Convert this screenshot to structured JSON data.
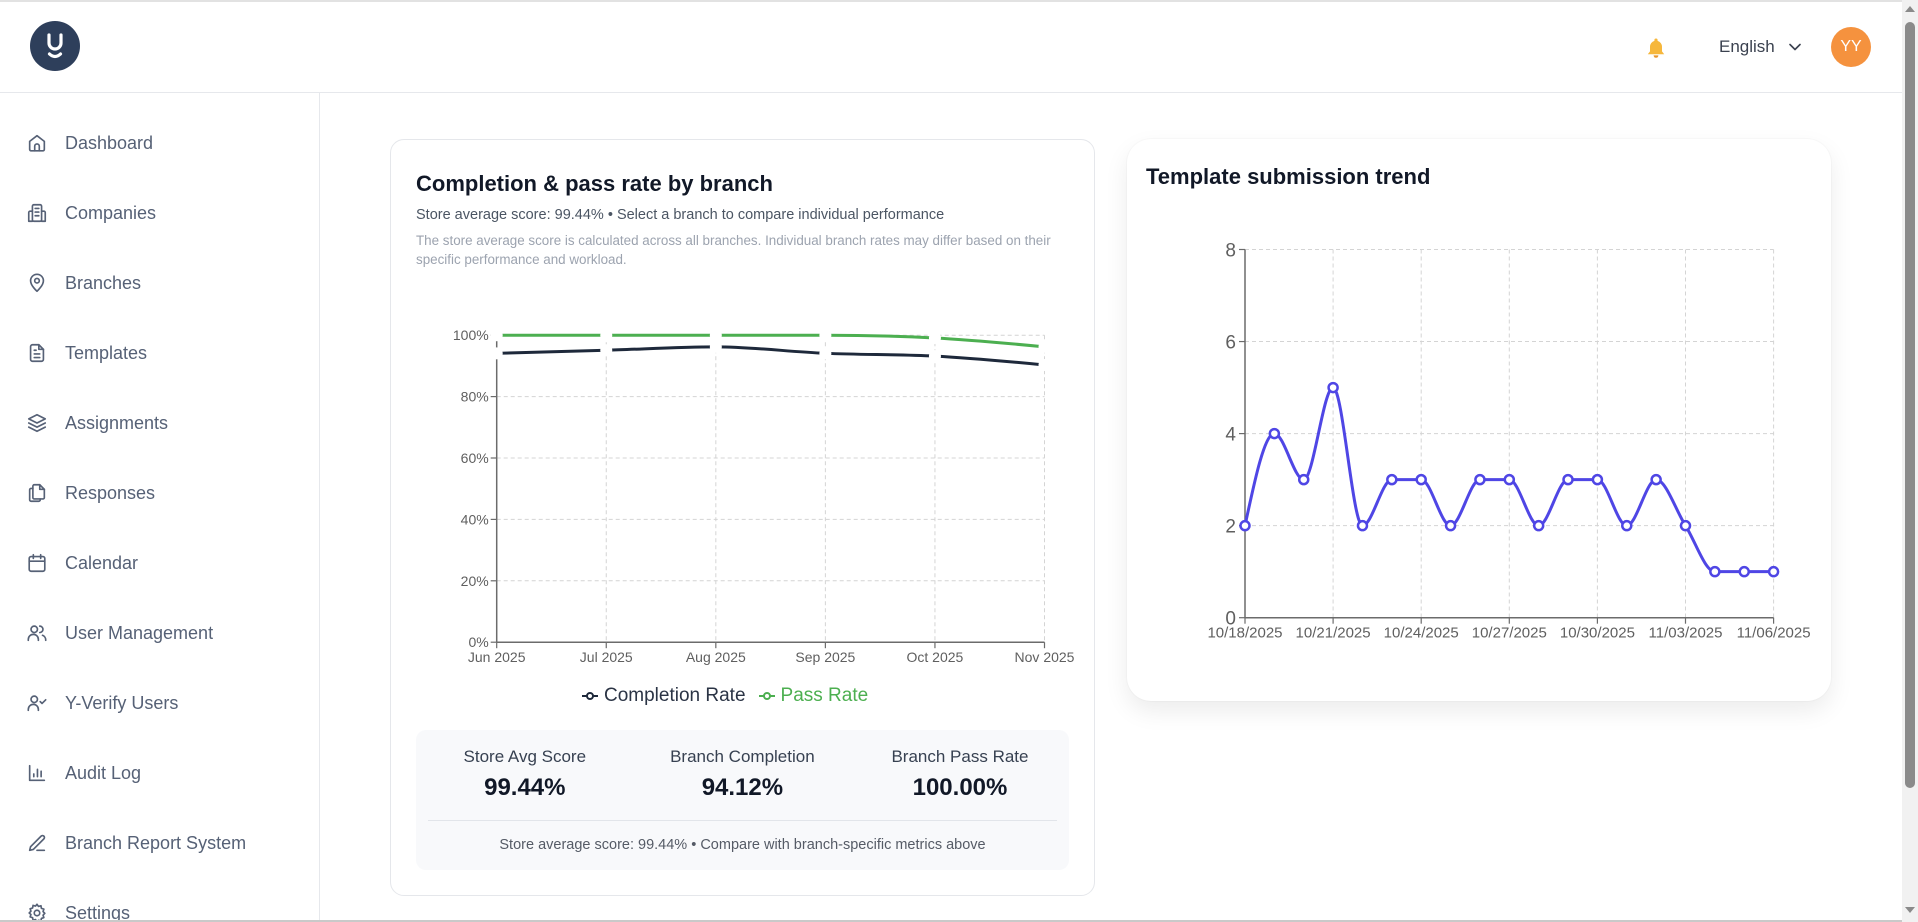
{
  "header": {
    "logo_text": "y",
    "notification_icon": "bell-icon",
    "language": "English",
    "avatar_initials": "YY",
    "avatar_color": "#f5923e"
  },
  "sidebar": {
    "items": [
      {
        "label": "Dashboard",
        "icon": "home-icon"
      },
      {
        "label": "Companies",
        "icon": "building-icon"
      },
      {
        "label": "Branches",
        "icon": "map-pin-icon"
      },
      {
        "label": "Templates",
        "icon": "file-text-icon"
      },
      {
        "label": "Assignments",
        "icon": "layers-icon"
      },
      {
        "label": "Responses",
        "icon": "files-icon"
      },
      {
        "label": "Calendar",
        "icon": "calendar-icon"
      },
      {
        "label": "User Management",
        "icon": "users-icon"
      },
      {
        "label": "Y-Verify Users",
        "icon": "user-check-icon"
      },
      {
        "label": "Audit Log",
        "icon": "bar-chart-icon"
      },
      {
        "label": "Branch Report System",
        "icon": "pen-icon"
      },
      {
        "label": "Settings",
        "icon": "gear-icon"
      }
    ]
  },
  "branch_card": {
    "subtitle": "Store average score: 99.44% • Select a branch to compare individual performance",
    "note": "The store average score is calculated across all branches. Individual branch rates may differ based on their specific performance and workload.",
    "stats": [
      {
        "label": "Store Avg Score",
        "value": "99.44%"
      },
      {
        "label": "Branch Completion",
        "value": "94.12%"
      },
      {
        "label": "Branch Pass Rate",
        "value": "100.00%"
      }
    ],
    "stats_footer": "Store average score: 99.44% • Compare with branch-specific metrics above"
  },
  "chart_data": [
    {
      "type": "line",
      "title": "Completion & pass rate by branch",
      "xlabel": "",
      "ylabel": "",
      "categories": [
        "Jun 2025",
        "Jul 2025",
        "Aug 2025",
        "Sep 2025",
        "Oct 2025",
        "Nov 2025"
      ],
      "series": [
        {
          "name": "Completion Rate",
          "color": "#1e293b",
          "values": [
            94.1,
            95.1,
            96.2,
            94.1,
            93.2,
            90.3
          ]
        },
        {
          "name": "Pass Rate",
          "color": "#4caf50",
          "values": [
            100,
            100,
            100,
            100,
            99.1,
            96.2
          ]
        }
      ],
      "ylim": [
        0,
        100
      ],
      "yticks": [
        {
          "value": 0,
          "label": "0%"
        },
        {
          "value": 20,
          "label": "20%"
        },
        {
          "value": 40,
          "label": "40%"
        },
        {
          "value": 60,
          "label": "60%"
        },
        {
          "value": 80,
          "label": "80%"
        },
        {
          "value": 100,
          "label": "100%"
        }
      ],
      "grid": true,
      "legend": "bottom"
    },
    {
      "type": "line",
      "title": "Template submission trend",
      "xlabel": "",
      "ylabel": "",
      "color": "#4f46e5",
      "values": [
        2,
        4,
        3,
        5,
        2,
        3,
        3,
        2,
        3,
        3,
        2,
        3,
        3,
        2,
        3,
        2,
        1,
        1,
        1
      ],
      "x_ticks": [
        {
          "index": 0,
          "label": "10/18/2025"
        },
        {
          "index": 3,
          "label": "10/21/2025"
        },
        {
          "index": 6,
          "label": "10/24/2025"
        },
        {
          "index": 9,
          "label": "10/27/2025"
        },
        {
          "index": 12,
          "label": "10/30/2025"
        },
        {
          "index": 15,
          "label": "11/03/2025"
        },
        {
          "index": 18,
          "label": "11/06/2025"
        }
      ],
      "ylim": [
        0,
        8
      ],
      "yticks": [
        {
          "value": 0,
          "label": "0"
        },
        {
          "value": 2,
          "label": "2"
        },
        {
          "value": 4,
          "label": "4"
        },
        {
          "value": 6,
          "label": "6"
        },
        {
          "value": 8,
          "label": "8"
        }
      ],
      "grid": true,
      "legend": "none"
    }
  ]
}
